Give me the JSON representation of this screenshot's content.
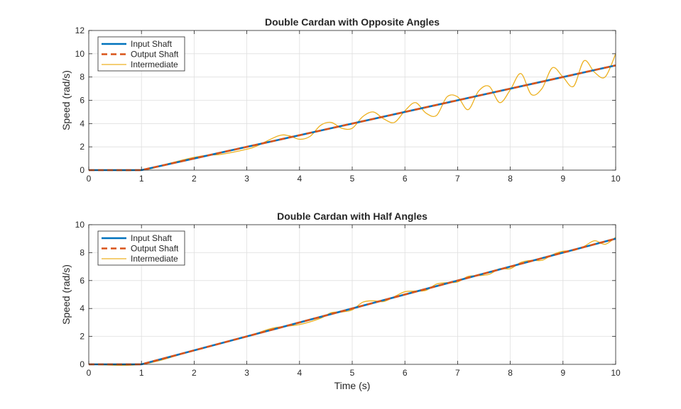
{
  "chart_data": [
    {
      "type": "line",
      "title": "Double Cardan with Opposite Angles",
      "xlabel": "",
      "ylabel": "Speed (rad/s)",
      "xlim": [
        0,
        10
      ],
      "ylim": [
        0,
        12
      ],
      "xticks": [
        0,
        1,
        2,
        3,
        4,
        5,
        6,
        7,
        8,
        9,
        10
      ],
      "yticks": [
        0,
        2,
        4,
        6,
        8,
        10,
        12
      ],
      "grid": true,
      "legend_position": "top-left",
      "series": [
        {
          "name": "Input Shaft",
          "color": "#0072BD",
          "style": "solid",
          "x": [
            0,
            1,
            10
          ],
          "y": [
            0,
            0,
            9
          ]
        },
        {
          "name": "Output Shaft",
          "color": "#D95319",
          "style": "dashed",
          "x": [
            0,
            1,
            10
          ],
          "y": [
            0,
            0,
            9
          ]
        },
        {
          "name": "Intermediate",
          "color": "#EDB120",
          "style": "solid",
          "x": [
            0,
            1,
            1.5,
            2,
            2.3,
            2.5,
            3,
            3.2,
            3.6,
            3.8,
            4,
            4.2,
            4.4,
            4.6,
            4.8,
            5,
            5.2,
            5.4,
            5.6,
            5.8,
            6,
            6.2,
            6.4,
            6.6,
            6.8,
            7,
            7.2,
            7.4,
            7.6,
            7.8,
            8,
            8.2,
            8.4,
            8.6,
            8.8,
            9,
            9.2,
            9.4,
            9.6,
            9.8,
            10
          ],
          "y": [
            0,
            0,
            0.55,
            1.1,
            1.3,
            1.35,
            1.8,
            2.1,
            2.95,
            2.95,
            2.65,
            2.9,
            3.85,
            4.1,
            3.6,
            3.6,
            4.6,
            5.0,
            4.4,
            4.1,
            5.1,
            5.8,
            4.9,
            4.7,
            6.3,
            6.3,
            5.2,
            6.8,
            7.2,
            5.8,
            6.9,
            8.3,
            6.5,
            7.0,
            8.8,
            8.0,
            7.2,
            9.4,
            8.4,
            8.0,
            10.0
          ]
        }
      ]
    },
    {
      "type": "line",
      "title": "Double Cardan with Half Angles",
      "xlabel": "Time (s)",
      "ylabel": "Speed (rad/s)",
      "xlim": [
        0,
        10
      ],
      "ylim": [
        0,
        10
      ],
      "xticks": [
        0,
        1,
        2,
        3,
        4,
        5,
        6,
        7,
        8,
        9,
        10
      ],
      "yticks": [
        0,
        2,
        4,
        6,
        8,
        10
      ],
      "grid": true,
      "legend_position": "top-left",
      "series": [
        {
          "name": "Input Shaft",
          "color": "#0072BD",
          "style": "solid",
          "x": [
            0,
            1,
            10
          ],
          "y": [
            0,
            0,
            9
          ]
        },
        {
          "name": "Output Shaft",
          "color": "#D95319",
          "style": "dashed",
          "x": [
            0,
            1,
            10
          ],
          "y": [
            0,
            0,
            9
          ]
        },
        {
          "name": "Intermediate",
          "color": "#EDB120",
          "style": "solid",
          "x": [
            0,
            1,
            2,
            3,
            3.5,
            4,
            4.4,
            4.6,
            4.8,
            5,
            5.2,
            5.4,
            5.6,
            5.8,
            6,
            6.2,
            6.4,
            6.6,
            6.8,
            7,
            7.2,
            7.4,
            7.6,
            7.8,
            8,
            8.2,
            8.4,
            8.6,
            8.8,
            9,
            9.2,
            9.4,
            9.6,
            9.8,
            10
          ],
          "y": [
            0,
            0,
            1.0,
            2.0,
            2.6,
            2.85,
            3.3,
            3.7,
            3.75,
            3.9,
            4.45,
            4.55,
            4.5,
            4.85,
            5.2,
            5.25,
            5.3,
            5.75,
            5.85,
            5.9,
            6.3,
            6.35,
            6.45,
            6.85,
            6.85,
            7.3,
            7.45,
            7.45,
            7.85,
            8.1,
            8.15,
            8.45,
            8.85,
            8.6,
            9.1
          ]
        }
      ]
    }
  ]
}
